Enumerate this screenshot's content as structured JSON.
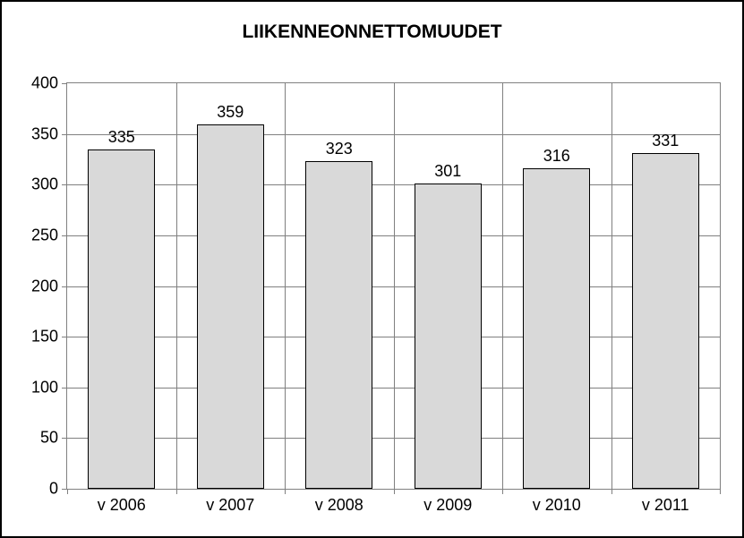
{
  "chart": {
    "type": "bar",
    "title": "LIIKENNEONNETTOMUUDET",
    "title_fontsize": 21,
    "title_weight": "bold",
    "categories": [
      "v 2006",
      "v 2007",
      "v 2008",
      "v 2009",
      "v 2010",
      "v 2011"
    ],
    "values": [
      335,
      359,
      323,
      301,
      316,
      331
    ],
    "bar_color": "#d9d9d9",
    "bar_border_color": "#000000",
    "background_color": "#ffffff",
    "grid_color": "#808080",
    "outer_border_color": "#000000",
    "ylim": [
      0,
      400
    ],
    "ytick_step": 50,
    "label_fontsize": 18,
    "bar_width_ratio": 0.62
  }
}
